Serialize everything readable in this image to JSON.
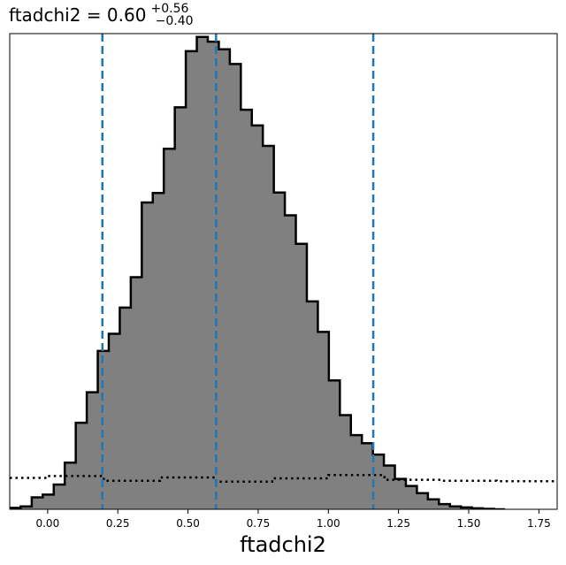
{
  "chart_data": {
    "type": "histogram",
    "title": {
      "prefix": "ftadchi2 = 0.60",
      "upper": "+0.56",
      "lower": "−0.40"
    },
    "xlabel": "ftadchi2",
    "ylabel": "",
    "xlim": [
      -0.135,
      1.815
    ],
    "ylim": [
      0,
      1.0
    ],
    "x_ticks": [
      0.0,
      0.25,
      0.5,
      0.75,
      1.0,
      1.25,
      1.5,
      1.75
    ],
    "x_tick_labels": [
      "0.00",
      "0.25",
      "0.50",
      "0.75",
      "1.00",
      "1.25",
      "1.50",
      "1.75"
    ],
    "y_ticks": [],
    "grid": false,
    "bin_width": 0.0392,
    "series": [
      {
        "role": "posterior",
        "style": "filled-step",
        "fill": "#808080",
        "edge": "#000000",
        "bins_start": -0.135,
        "heights": [
          0.003,
          0.006,
          0.025,
          0.031,
          0.052,
          0.098,
          0.182,
          0.246,
          0.333,
          0.369,
          0.424,
          0.488,
          0.645,
          0.665,
          0.758,
          0.845,
          0.963,
          0.993,
          0.983,
          0.967,
          0.936,
          0.84,
          0.807,
          0.764,
          0.666,
          0.618,
          0.558,
          0.437,
          0.373,
          0.271,
          0.198,
          0.156,
          0.139,
          0.115,
          0.092,
          0.064,
          0.049,
          0.034,
          0.021,
          0.011,
          0.006,
          0.004,
          0.002,
          0.001,
          0.0
        ]
      },
      {
        "role": "prior",
        "style": "dotted-step",
        "color": "#000000",
        "segments": [
          {
            "x0": -0.135,
            "x1": 0.0,
            "y": 0.066
          },
          {
            "x0": 0.0,
            "x1": 0.2,
            "y": 0.07
          },
          {
            "x0": 0.2,
            "x1": 0.4,
            "y": 0.06
          },
          {
            "x0": 0.4,
            "x1": 0.6,
            "y": 0.067
          },
          {
            "x0": 0.6,
            "x1": 0.8,
            "y": 0.058
          },
          {
            "x0": 0.8,
            "x1": 1.0,
            "y": 0.065
          },
          {
            "x0": 1.0,
            "x1": 1.2,
            "y": 0.072
          },
          {
            "x0": 1.2,
            "x1": 1.4,
            "y": 0.062
          },
          {
            "x0": 1.4,
            "x1": 1.6,
            "y": 0.06
          },
          {
            "x0": 1.6,
            "x1": 1.815,
            "y": 0.059
          }
        ]
      }
    ],
    "vlines": [
      {
        "x": 0.195,
        "color": "#1f77b4",
        "style": "dashed"
      },
      {
        "x": 0.6,
        "color": "#1f77b4",
        "style": "dashed"
      },
      {
        "x": 1.16,
        "color": "#1f77b4",
        "style": "dashed"
      }
    ]
  }
}
